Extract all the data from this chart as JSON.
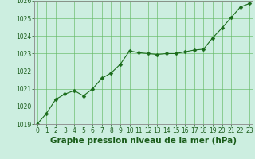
{
  "x": [
    0,
    1,
    2,
    3,
    4,
    5,
    6,
    7,
    8,
    9,
    10,
    11,
    12,
    13,
    14,
    15,
    16,
    17,
    18,
    19,
    20,
    21,
    22,
    23
  ],
  "y": [
    1019.0,
    1019.6,
    1020.4,
    1020.7,
    1020.9,
    1020.6,
    1021.0,
    1021.6,
    1021.9,
    1022.4,
    1023.15,
    1023.05,
    1023.0,
    1022.95,
    1023.0,
    1023.0,
    1023.1,
    1023.2,
    1023.25,
    1023.9,
    1024.45,
    1025.05,
    1025.65,
    1025.85
  ],
  "line_color": "#1a6b1a",
  "marker_color": "#1a6b1a",
  "bg_color": "#cceee0",
  "grid_color": "#66bb66",
  "xlabel": "Graphe pression niveau de la mer (hPa)",
  "xlabel_color": "#1a5c1a",
  "tick_color": "#1a5c1a",
  "spine_color": "#888888",
  "ylim": [
    1019,
    1026
  ],
  "xlim": [
    -0.3,
    23.3
  ],
  "yticks": [
    1019,
    1020,
    1021,
    1022,
    1023,
    1024,
    1025,
    1026
  ],
  "xticks": [
    0,
    1,
    2,
    3,
    4,
    5,
    6,
    7,
    8,
    9,
    10,
    11,
    12,
    13,
    14,
    15,
    16,
    17,
    18,
    19,
    20,
    21,
    22,
    23
  ],
  "tick_fontsize": 5.5,
  "xlabel_fontsize": 7.5,
  "marker_size": 2.5,
  "line_width": 0.8
}
